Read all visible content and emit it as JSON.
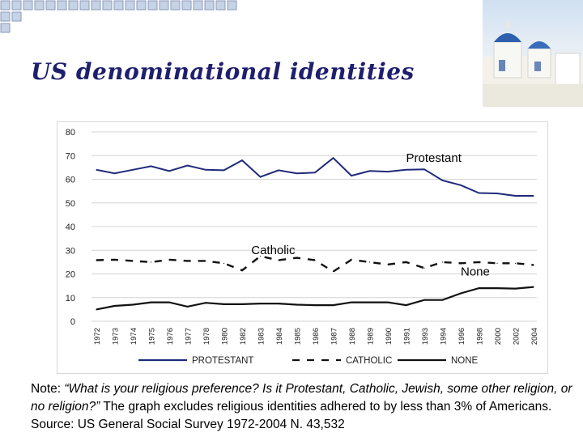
{
  "slide": {
    "title": "US denominational identities"
  },
  "note": {
    "prefix": "Note: ",
    "quote": "“What is your religious preference? Is it Protestant, Catholic, Jewish, some other religion, or no religion?”",
    "rest": " The graph excludes religious identities adhered to by less than 3% of Americans. Source: US General Social Survey 1972-2004 N. 43,532"
  },
  "colors": {
    "title": "#1f1f6e",
    "protestant": "#1f2a7a",
    "catholic": "#111111",
    "none": "#111111",
    "squares_fill": "#c6d2e6",
    "squares_border": "#8a99b8"
  },
  "chart_data": {
    "type": "line",
    "x": [
      "1972",
      "1973",
      "1974",
      "1975",
      "1976",
      "1977",
      "1978",
      "1980",
      "1982",
      "1983",
      "1984",
      "1985",
      "1986",
      "1987",
      "1988",
      "1989",
      "1990",
      "1991",
      "1993",
      "1994",
      "1996",
      "1998",
      "2000",
      "2002",
      "2004"
    ],
    "ylim": [
      0,
      80
    ],
    "yticks": [
      0,
      10,
      20,
      30,
      40,
      50,
      60,
      70,
      80
    ],
    "grid": true,
    "legend_position": "bottom",
    "series": [
      {
        "name": "PROTESTANT",
        "values": [
          64,
          62.5,
          64,
          65.5,
          63.5,
          65.8,
          64,
          63.8,
          68,
          61,
          63.8,
          62.5,
          62.8,
          69,
          61.5,
          63.5,
          63.2,
          64,
          64.2,
          59.5,
          57.5,
          54.2,
          54,
          53,
          53
        ],
        "label": "Protestant",
        "style": "solid"
      },
      {
        "name": "CATHOLIC",
        "values": [
          25.8,
          26,
          25.5,
          25,
          26,
          25.5,
          25.5,
          24.5,
          21.5,
          27.5,
          25.8,
          26.8,
          25.8,
          21,
          26,
          25,
          24,
          25,
          22.5,
          25,
          24.5,
          25,
          24.5,
          24.5,
          23.8
        ],
        "label": "Catholic",
        "style": "dashed"
      },
      {
        "name": "NONE",
        "values": [
          5,
          6.5,
          7,
          8,
          8,
          6.2,
          7.8,
          7.2,
          7.2,
          7.5,
          7.5,
          7,
          6.8,
          6.8,
          8,
          8,
          8,
          6.8,
          9,
          9,
          11.8,
          14,
          14,
          13.8,
          14.5
        ],
        "label": "None",
        "style": "solid"
      }
    ]
  }
}
